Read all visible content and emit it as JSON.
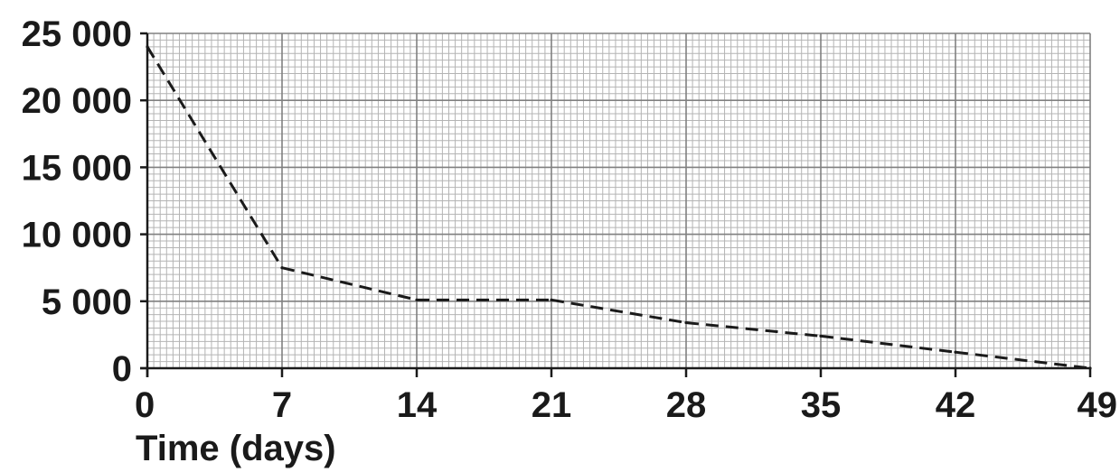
{
  "chart_data": {
    "type": "line",
    "title": "",
    "xlabel": "Time (days)",
    "ylabel": "",
    "x_ticks": [
      0,
      7,
      14,
      21,
      28,
      35,
      42,
      49
    ],
    "y_ticks": [
      0,
      5000,
      10000,
      15000,
      20000,
      25000
    ],
    "y_tick_labels": [
      "0",
      "5 000",
      "10 000",
      "15 000",
      "20 000",
      "25 000"
    ],
    "xlim": [
      0,
      49
    ],
    "ylim": [
      0,
      25000
    ],
    "grid": true,
    "series": [
      {
        "line_style": "dashed",
        "color": "#1a1a1a",
        "x": [
          0,
          7,
          14,
          21,
          28,
          35,
          42,
          49
        ],
        "y": [
          24000,
          7500,
          5100,
          5100,
          3400,
          2400,
          1200,
          0
        ]
      }
    ]
  }
}
